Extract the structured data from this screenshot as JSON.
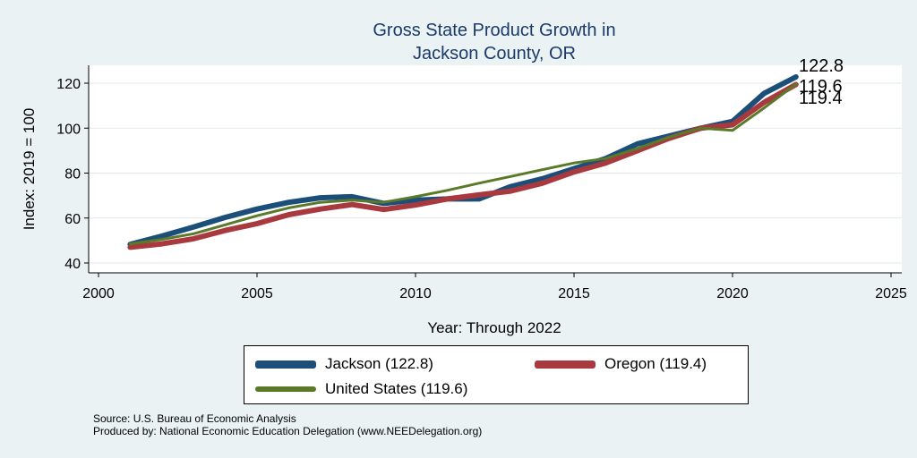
{
  "chart_data": {
    "type": "line",
    "title": [
      "Gross State Product Growth in",
      "Jackson County, OR"
    ],
    "xlabel": "Year: Through 2022",
    "ylabel": "Index: 2019 = 100",
    "xlim": [
      2000,
      2025
    ],
    "ylim": [
      40,
      128
    ],
    "xticks": [
      2000,
      2005,
      2010,
      2015,
      2020,
      2025
    ],
    "yticks": [
      40,
      60,
      80,
      100,
      120
    ],
    "grid": true,
    "x": [
      2001,
      2002,
      2003,
      2004,
      2005,
      2006,
      2007,
      2008,
      2009,
      2010,
      2011,
      2012,
      2013,
      2014,
      2015,
      2016,
      2017,
      2018,
      2019,
      2020,
      2021,
      2022
    ],
    "series": [
      {
        "name": "Jackson",
        "legend": "Jackson  (122.8)",
        "color": "#1b4f7a",
        "width": 6,
        "values": [
          48.3,
          52.0,
          56.0,
          60.3,
          64.0,
          67.0,
          69.0,
          69.5,
          66.5,
          68.0,
          68.5,
          68.5,
          74.0,
          77.5,
          82.0,
          86.5,
          93.0,
          96.5,
          100.0,
          103.0,
          115.5,
          122.8
        ]
      },
      {
        "name": "Oregon",
        "legend": "Oregon (119.4)",
        "color": "#a83a3f",
        "width": 6,
        "values": [
          47.0,
          48.5,
          50.8,
          54.5,
          57.5,
          61.5,
          64.0,
          66.0,
          63.8,
          65.8,
          68.5,
          70.3,
          72.0,
          75.5,
          80.5,
          84.5,
          90.0,
          95.5,
          100.0,
          101.5,
          111.5,
          119.4
        ]
      },
      {
        "name": "United States",
        "legend": "United States (119.6)",
        "color": "#5a7a2a",
        "width": 3,
        "values": [
          48.5,
          50.5,
          53.0,
          57.0,
          61.0,
          64.5,
          67.0,
          68.0,
          67.0,
          69.5,
          72.3,
          75.5,
          78.5,
          81.5,
          84.5,
          86.5,
          91.0,
          96.0,
          100.0,
          99.0,
          109.0,
          119.6
        ]
      }
    ],
    "end_labels": [
      {
        "series": "Jackson",
        "text": "122.8"
      },
      {
        "series": "United States",
        "text": "119.6"
      },
      {
        "series": "Oregon",
        "text": "119.4"
      }
    ],
    "legend_position": "bottom"
  },
  "source": {
    "line1": "Source: U.S. Bureau of Economic Analysis",
    "line2": "Produced by: National Economic Education Delegation (www.NEEDelegation.org)"
  }
}
